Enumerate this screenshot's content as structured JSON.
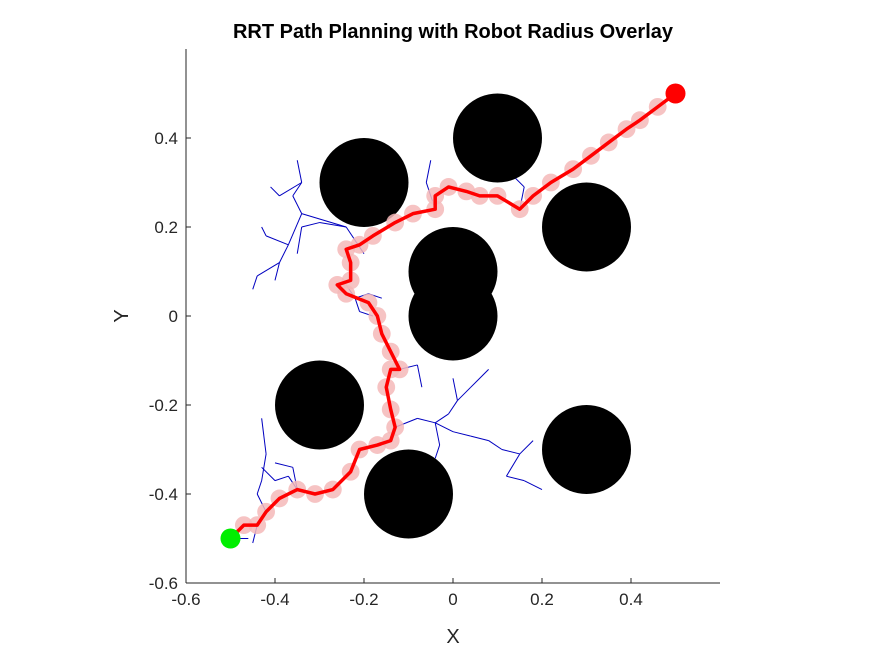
{
  "chart_data": {
    "type": "scatter",
    "title": "RRT Path Planning with Robot Radius Overlay",
    "xlabel": "X",
    "ylabel": "Y",
    "xlim": [
      -0.6,
      0.6
    ],
    "ylim": [
      -0.6,
      0.6
    ],
    "xticks": [
      "-0.6",
      "-0.4",
      "-0.2",
      "0",
      "0.2",
      "0.4"
    ],
    "yticks": [
      "-0.6",
      "-0.4",
      "-0.2",
      "0",
      "0.2",
      "0.4"
    ],
    "grid": false,
    "obstacle_radius": 0.1,
    "obstacles": [
      {
        "x": -0.2,
        "y": 0.3
      },
      {
        "x": 0.1,
        "y": 0.4
      },
      {
        "x": 0.3,
        "y": 0.2
      },
      {
        "x": 0.0,
        "y": 0.1
      },
      {
        "x": 0.0,
        "y": 0.0
      },
      {
        "x": -0.3,
        "y": -0.2
      },
      {
        "x": -0.1,
        "y": -0.4
      },
      {
        "x": 0.3,
        "y": -0.3
      }
    ],
    "start": {
      "x": -0.5,
      "y": -0.5
    },
    "goal": {
      "x": 0.5,
      "y": 0.5
    },
    "robot_radius": 0.02,
    "path": [
      [
        -0.5,
        -0.5
      ],
      [
        -0.47,
        -0.47
      ],
      [
        -0.44,
        -0.47
      ],
      [
        -0.42,
        -0.44
      ],
      [
        -0.39,
        -0.41
      ],
      [
        -0.35,
        -0.39
      ],
      [
        -0.31,
        -0.4
      ],
      [
        -0.27,
        -0.39
      ],
      [
        -0.23,
        -0.35
      ],
      [
        -0.21,
        -0.3
      ],
      [
        -0.17,
        -0.29
      ],
      [
        -0.14,
        -0.28
      ],
      [
        -0.13,
        -0.25
      ],
      [
        -0.14,
        -0.21
      ],
      [
        -0.15,
        -0.16
      ],
      [
        -0.14,
        -0.12
      ],
      [
        -0.12,
        -0.12
      ],
      [
        -0.14,
        -0.08
      ],
      [
        -0.16,
        -0.04
      ],
      [
        -0.17,
        0.0
      ],
      [
        -0.19,
        0.03
      ],
      [
        -0.24,
        0.05
      ],
      [
        -0.26,
        0.07
      ],
      [
        -0.23,
        0.08
      ],
      [
        -0.23,
        0.12
      ],
      [
        -0.24,
        0.15
      ],
      [
        -0.21,
        0.16
      ],
      [
        -0.18,
        0.18
      ],
      [
        -0.13,
        0.21
      ],
      [
        -0.09,
        0.23
      ],
      [
        -0.04,
        0.24
      ],
      [
        -0.04,
        0.27
      ],
      [
        -0.01,
        0.29
      ],
      [
        0.03,
        0.28
      ],
      [
        0.06,
        0.27
      ],
      [
        0.1,
        0.27
      ],
      [
        0.15,
        0.24
      ],
      [
        0.18,
        0.27
      ],
      [
        0.22,
        0.3
      ],
      [
        0.27,
        0.33
      ],
      [
        0.31,
        0.36
      ],
      [
        0.35,
        0.39
      ],
      [
        0.39,
        0.42
      ],
      [
        0.42,
        0.44
      ],
      [
        0.46,
        0.47
      ],
      [
        0.5,
        0.5
      ]
    ],
    "tree_edges": [
      [
        [
          -0.2,
          0.14
        ],
        [
          -0.24,
          0.2
        ]
      ],
      [
        [
          -0.24,
          0.2
        ],
        [
          -0.3,
          0.21
        ]
      ],
      [
        [
          -0.3,
          0.21
        ],
        [
          -0.34,
          0.2
        ]
      ],
      [
        [
          -0.34,
          0.2
        ],
        [
          -0.35,
          0.14
        ]
      ],
      [
        [
          -0.24,
          0.2
        ],
        [
          -0.34,
          0.23
        ]
      ],
      [
        [
          -0.34,
          0.23
        ],
        [
          -0.36,
          0.27
        ]
      ],
      [
        [
          -0.36,
          0.27
        ],
        [
          -0.34,
          0.3
        ]
      ],
      [
        [
          -0.34,
          0.3
        ],
        [
          -0.35,
          0.35
        ]
      ],
      [
        [
          -0.34,
          0.3
        ],
        [
          -0.39,
          0.27
        ]
      ],
      [
        [
          -0.39,
          0.27
        ],
        [
          -0.41,
          0.29
        ]
      ],
      [
        [
          -0.34,
          0.23
        ],
        [
          -0.37,
          0.16
        ]
      ],
      [
        [
          -0.37,
          0.16
        ],
        [
          -0.39,
          0.12
        ]
      ],
      [
        [
          -0.39,
          0.12
        ],
        [
          -0.44,
          0.09
        ]
      ],
      [
        [
          -0.44,
          0.09
        ],
        [
          -0.45,
          0.06
        ]
      ],
      [
        [
          -0.39,
          0.12
        ],
        [
          -0.4,
          0.08
        ]
      ],
      [
        [
          -0.37,
          0.16
        ],
        [
          -0.42,
          0.18
        ]
      ],
      [
        [
          -0.42,
          0.18
        ],
        [
          -0.43,
          0.2
        ]
      ],
      [
        [
          -0.04,
          0.24
        ],
        [
          -0.06,
          0.3
        ]
      ],
      [
        [
          -0.06,
          0.3
        ],
        [
          -0.05,
          0.35
        ]
      ],
      [
        [
          0.15,
          0.24
        ],
        [
          0.16,
          0.29
        ]
      ],
      [
        [
          0.16,
          0.29
        ],
        [
          0.13,
          0.32
        ]
      ],
      [
        [
          -0.24,
          0.07
        ],
        [
          -0.22,
          0.04
        ]
      ],
      [
        [
          -0.22,
          0.04
        ],
        [
          -0.19,
          0.05
        ]
      ],
      [
        [
          -0.19,
          0.05
        ],
        [
          -0.16,
          0.04
        ]
      ],
      [
        [
          -0.22,
          0.04
        ],
        [
          -0.21,
          0.01
        ]
      ],
      [
        [
          -0.21,
          0.01
        ],
        [
          -0.18,
          0.0
        ]
      ],
      [
        [
          -0.12,
          -0.12
        ],
        [
          -0.08,
          -0.11
        ]
      ],
      [
        [
          -0.08,
          -0.11
        ],
        [
          -0.07,
          -0.16
        ]
      ],
      [
        [
          -0.13,
          -0.25
        ],
        [
          -0.08,
          -0.23
        ]
      ],
      [
        [
          -0.08,
          -0.23
        ],
        [
          -0.04,
          -0.24
        ]
      ],
      [
        [
          -0.04,
          -0.24
        ],
        [
          -0.01,
          -0.22
        ]
      ],
      [
        [
          -0.01,
          -0.22
        ],
        [
          0.01,
          -0.19
        ]
      ],
      [
        [
          0.01,
          -0.19
        ],
        [
          0.04,
          -0.16
        ]
      ],
      [
        [
          0.04,
          -0.16
        ],
        [
          0.08,
          -0.12
        ]
      ],
      [
        [
          0.01,
          -0.19
        ],
        [
          0.0,
          -0.14
        ]
      ],
      [
        [
          -0.04,
          -0.24
        ],
        [
          -0.03,
          -0.29
        ]
      ],
      [
        [
          -0.03,
          -0.29
        ],
        [
          -0.04,
          -0.32
        ]
      ],
      [
        [
          -0.04,
          -0.24
        ],
        [
          0.0,
          -0.26
        ]
      ],
      [
        [
          0.0,
          -0.26
        ],
        [
          0.04,
          -0.27
        ]
      ],
      [
        [
          0.04,
          -0.27
        ],
        [
          0.08,
          -0.28
        ]
      ],
      [
        [
          0.08,
          -0.28
        ],
        [
          0.11,
          -0.3
        ]
      ],
      [
        [
          0.11,
          -0.3
        ],
        [
          0.15,
          -0.31
        ]
      ],
      [
        [
          0.15,
          -0.31
        ],
        [
          0.18,
          -0.28
        ]
      ],
      [
        [
          0.15,
          -0.31
        ],
        [
          0.12,
          -0.36
        ]
      ],
      [
        [
          0.12,
          -0.36
        ],
        [
          0.16,
          -0.37
        ]
      ],
      [
        [
          0.16,
          -0.37
        ],
        [
          0.2,
          -0.39
        ]
      ],
      [
        [
          -0.35,
          -0.39
        ],
        [
          -0.37,
          -0.36
        ]
      ],
      [
        [
          -0.37,
          -0.36
        ],
        [
          -0.4,
          -0.37
        ]
      ],
      [
        [
          -0.4,
          -0.37
        ],
        [
          -0.43,
          -0.34
        ]
      ],
      [
        [
          -0.35,
          -0.39
        ],
        [
          -0.36,
          -0.34
        ]
      ],
      [
        [
          -0.36,
          -0.34
        ],
        [
          -0.4,
          -0.33
        ]
      ],
      [
        [
          -0.42,
          -0.44
        ],
        [
          -0.44,
          -0.4
        ]
      ],
      [
        [
          -0.44,
          -0.4
        ],
        [
          -0.43,
          -0.37
        ]
      ],
      [
        [
          -0.43,
          -0.37
        ],
        [
          -0.42,
          -0.31
        ]
      ],
      [
        [
          -0.42,
          -0.31
        ],
        [
          -0.43,
          -0.23
        ]
      ],
      [
        [
          -0.44,
          -0.47
        ],
        [
          -0.45,
          -0.51
        ]
      ],
      [
        [
          -0.5,
          -0.5
        ],
        [
          -0.46,
          -0.5
        ]
      ]
    ]
  },
  "colors": {
    "obstacle": "#000000",
    "path": "#ff0000",
    "robot_disc": "#f4b8b8",
    "tree": "#0000c0",
    "start": "#00ee00",
    "goal": "#ff0000",
    "axis": "#262626"
  }
}
